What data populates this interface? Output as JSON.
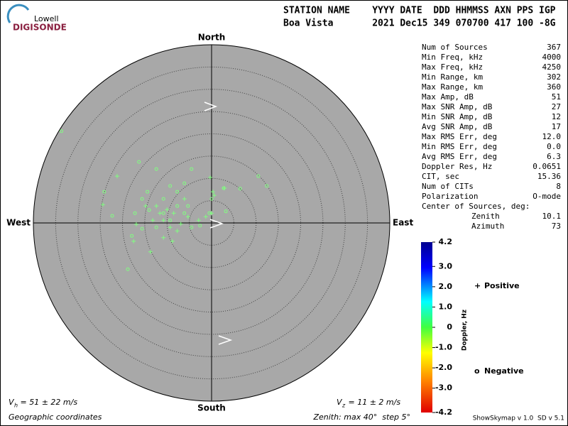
{
  "logo": {
    "top": "Lowell",
    "bottom": "DIGISONDE"
  },
  "header": {
    "line1": "STATION NAME    YYYY DATE  DDD HHMMSS AXN PPS IGP",
    "line2": "Boa Vista       2021 Dec15 349 070700 417 100 -8G"
  },
  "chart_data": {
    "type": "scatter",
    "directions": {
      "north": "North",
      "south": "South",
      "east": "East",
      "west": "West"
    },
    "xlim": [
      -40,
      40
    ],
    "ylim": [
      -40,
      40
    ],
    "rings": [
      5,
      10,
      15,
      20,
      25,
      30,
      35
    ],
    "series": [
      {
        "name": "Positive",
        "color": "#80ff80",
        "marker": "plus",
        "x": [
          -0.3,
          2.9,
          0.3,
          0.6,
          0,
          -11.6,
          -10.0,
          -8.5,
          -13.2,
          -12.4,
          -9.3,
          -17.5,
          -13.7,
          -10.8,
          -6.9,
          -5.3,
          -14.8,
          -16.9,
          -6.1,
          -2.9,
          -24.4,
          -8.8,
          -21.2,
          -1.3,
          -7.7,
          -10.8
        ],
        "y": [
          10.2,
          7.8,
          7.0,
          6.2,
          2.2,
          2.2,
          3.0,
          2.2,
          0.6,
          3.8,
          -1.0,
          -4.1,
          -6.5,
          -3.3,
          -0.2,
          1.4,
          3.8,
          -0.3,
          5.4,
          0.6,
          4.1,
          -4.1,
          10.5,
          1.4,
          -1.8,
          0.6
        ]
      },
      {
        "name": "Negative",
        "color": "#80ff80",
        "marker": "circle",
        "x": [
          -33.7,
          12.4,
          10.5,
          6.4,
          -18.8,
          -22.3,
          -24.1,
          -16.3,
          -12.4,
          -9.3,
          -6.1,
          -4.5,
          2.7,
          0,
          3.2,
          -2.6,
          -7.7,
          -10.8,
          -14.0,
          -15.6,
          -17.2,
          -12.4,
          -9.3,
          -6.1,
          -4.5,
          -15.6,
          -10.8,
          -7.7,
          -17.9,
          -14.4,
          -5.3,
          -0.5
        ],
        "y": [
          20.6,
          8.3,
          10.5,
          7.7,
          -10.4,
          1.6,
          7.0,
          13.7,
          12.1,
          8.3,
          8.9,
          12.1,
          7.8,
          5.4,
          2.6,
          -0.6,
          3.8,
          2.2,
          2.9,
          5.4,
          2.2,
          -1.0,
          0.6,
          2.2,
          -1.0,
          -1.3,
          5.4,
          7.0,
          -2.9,
          7.0,
          3.8,
          2.2
        ]
      }
    ]
  },
  "stats": [
    [
      "Num of Sources",
      "367"
    ],
    [
      "Min Freq, kHz",
      "4000"
    ],
    [
      "Max Freq, kHz",
      "4250"
    ],
    [
      "Min Range, km",
      "302"
    ],
    [
      "Max Range, km",
      "360"
    ],
    [
      "Max Amp, dB",
      "51"
    ],
    [
      "Max SNR Amp, dB",
      "27"
    ],
    [
      "Min SNR Amp, dB",
      "12"
    ],
    [
      "Avg SNR Amp, dB",
      "17"
    ],
    [
      "Max RMS Err, deg",
      "12.0"
    ],
    [
      "Min RMS Err, deg",
      "0.0"
    ],
    [
      "Avg RMS Err, deg",
      "6.3"
    ],
    [
      "Doppler Res, Hz",
      "0.0651"
    ],
    [
      "CIT, sec",
      "15.36"
    ],
    [
      "Num of CITs",
      "8"
    ],
    [
      "Polarization",
      "O-mode"
    ]
  ],
  "center": {
    "title": "Center of Sources, deg:",
    "rows": [
      [
        "Zenith",
        "10.1"
      ],
      [
        "Azimuth",
        "73"
      ]
    ]
  },
  "colorbar": {
    "label": "Doppler, Hz",
    "lim": [
      -4.2,
      4.2
    ],
    "ticks": [
      4.2,
      {
        "value": 3,
        "label": "3.0"
      },
      {
        "value": 2,
        "label": "2.0"
      },
      {
        "value": 1,
        "label": "1.0"
      },
      0,
      {
        "value": -1,
        "label": "-1.0"
      },
      {
        "value": -2,
        "label": "-2.0"
      },
      {
        "value": -3,
        "label": "-3.0"
      },
      -4.2
    ]
  },
  "legend": {
    "positive": {
      "symbol": "+",
      "text": "Positive",
      "color": "#0000c0"
    },
    "negative": {
      "symbol": "o",
      "text": "Negative",
      "color": "#d00000"
    }
  },
  "velocity": {
    "h": {
      "symbol": "V",
      "sub": "h",
      "text": " = 51 ± 22 m/s"
    },
    "z": {
      "symbol": "V",
      "sub": "z",
      "text": " = 11 ± 2 m/s"
    }
  },
  "footer": {
    "coords": "Geographic coordinates",
    "zenith": "Zenith: max 40°  step 5°",
    "version": "ShowSkymap v 1.0  SD v 5.1"
  }
}
